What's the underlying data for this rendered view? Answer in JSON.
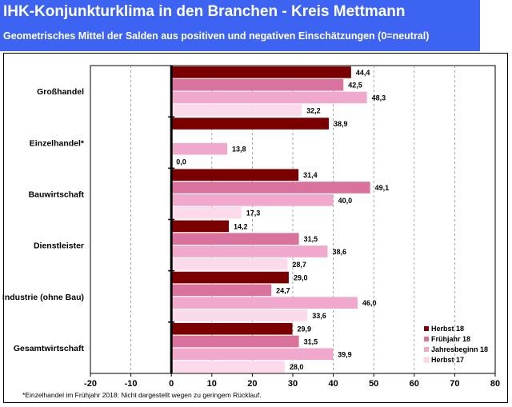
{
  "header": {
    "title": "IHK-Konjunkturklima in den Branchen - Kreis Mettmann",
    "subtitle": "Geometrisches Mittel der Salden aus positiven und negativen Einschätzungen (0=neutral)"
  },
  "footnote": "*Einzelhandel im Frühjahr 2018: Nicht dargestellt wegen zu geringem Rücklauf.",
  "chart_data": {
    "type": "bar",
    "orientation": "horizontal",
    "categories": [
      "Großhandel",
      "Einzelhandel*",
      "Bauwirtschaft",
      "Dienstleister",
      "Industrie (ohne Bau)",
      "Gesamtwirtschaft"
    ],
    "series": [
      {
        "name": "Herbst 18",
        "color": "#7a0000",
        "values": [
          44.4,
          38.9,
          31.4,
          14.2,
          29.0,
          29.9
        ],
        "labels": [
          "44,4",
          "38,9",
          "31,4",
          "14,2",
          "29,0",
          "29,9"
        ]
      },
      {
        "name": "Frühjahr 18",
        "color": "#d9739e",
        "values": [
          42.5,
          null,
          49.1,
          31.5,
          24.7,
          31.5
        ],
        "labels": [
          "42,5",
          "",
          "49,1",
          "31,5",
          "24,7",
          "31,5"
        ]
      },
      {
        "name": "Jahresbeginn 18",
        "color": "#f0a8cd",
        "values": [
          48.3,
          13.8,
          40.0,
          38.6,
          46.0,
          39.9
        ],
        "labels": [
          "48,3",
          "13,8",
          "40,0",
          "38,6",
          "46,0",
          "39,9"
        ]
      },
      {
        "name": "Herbst 17",
        "color": "#fbdbe9",
        "values": [
          32.2,
          0.0,
          17.3,
          28.7,
          33.6,
          28.0
        ],
        "labels": [
          "32,2",
          "0,0",
          "17,3",
          "28,7",
          "33,6",
          "28,0"
        ]
      }
    ],
    "xlim": [
      -20,
      80
    ],
    "xticks": [
      -20,
      -10,
      0,
      10,
      20,
      30,
      40,
      50,
      60,
      70,
      80
    ],
    "xtick_labels": [
      "-20",
      "-10",
      "0",
      "10",
      "20",
      "30",
      "40",
      "50",
      "60",
      "70",
      "80"
    ],
    "grid": "vertical dashed",
    "legend_position": "bottom-right"
  }
}
